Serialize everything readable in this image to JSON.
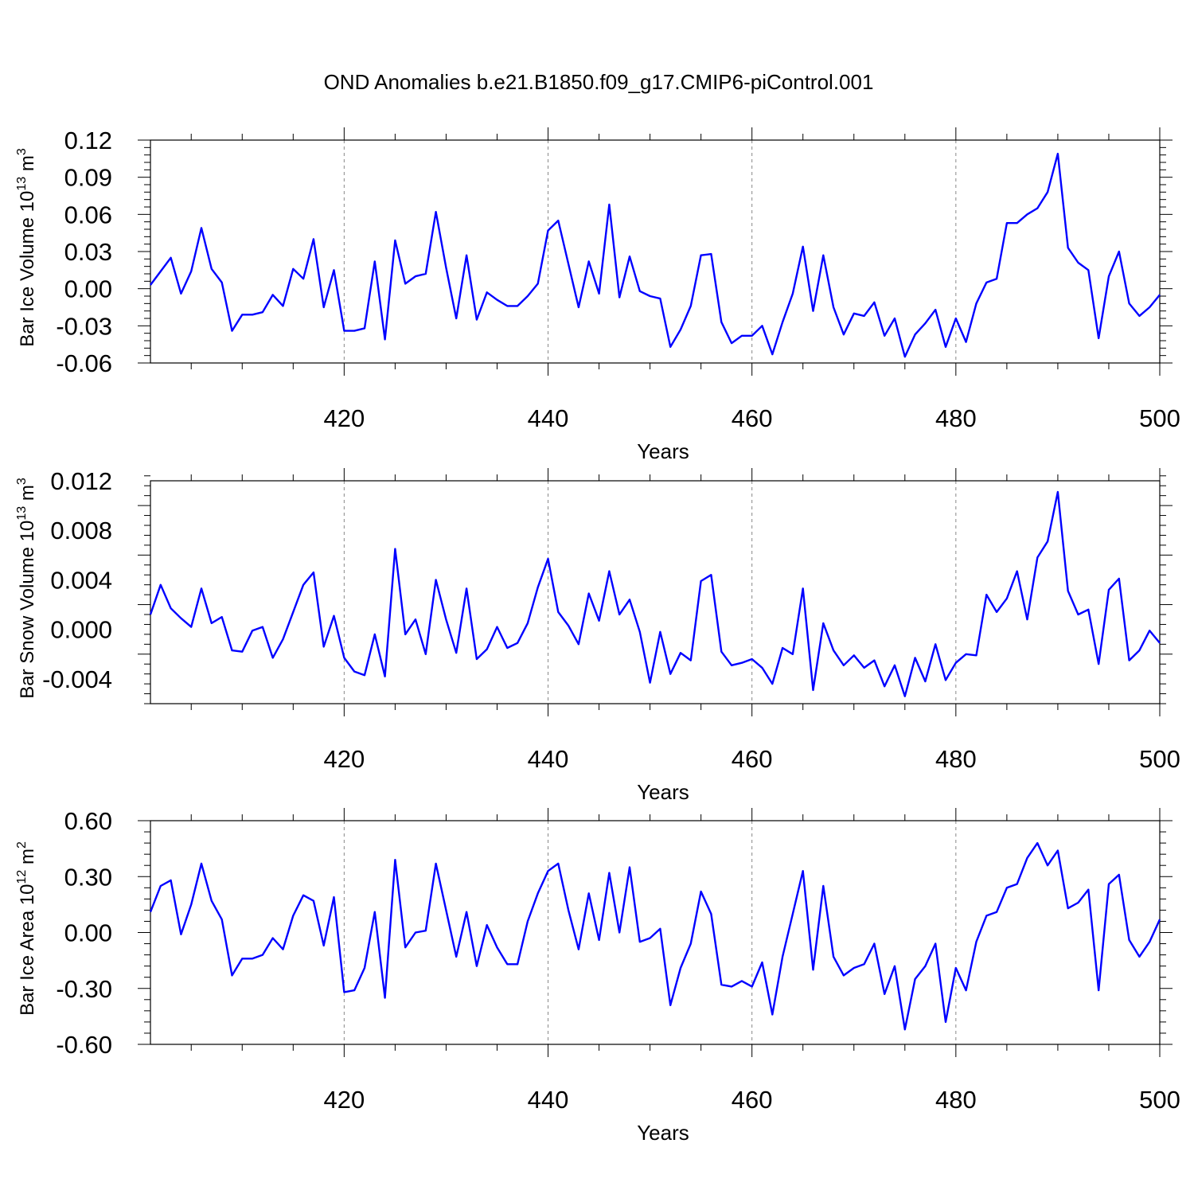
{
  "title": "OND Anomalies b.e21.B1850.f09_g17.CMIP6-piControl.001",
  "colors": {
    "line": "#0000ff",
    "axes": "#000000",
    "grid": "#888888"
  },
  "chart_data": [
    {
      "type": "line",
      "xlabel": "Years",
      "ylabel": "Bar Ice Volume 10",
      "ylabel_exp": "13",
      "ylabel_unit": " m",
      "ylabel_unit_exp": "3",
      "xlim": [
        401,
        500
      ],
      "ylim": [
        -0.06,
        0.12
      ],
      "xticks": [
        420,
        440,
        460,
        480,
        500
      ],
      "xtick_labels": [
        "420",
        "440",
        "460",
        "480",
        "500"
      ],
      "yticks": [
        -0.06,
        -0.03,
        0.0,
        0.03,
        0.06,
        0.09,
        0.12
      ],
      "ytick_labels": [
        "-0.06",
        "-0.03",
        "0.00",
        "0.03",
        "0.06",
        "0.09",
        "0.12"
      ],
      "grid": "vertical dashed at major x ticks",
      "series": [
        {
          "x_start": 401,
          "values": [
            0.003,
            0.014,
            0.025,
            -0.004,
            0.014,
            0.049,
            0.016,
            0.005,
            -0.034,
            -0.021,
            -0.021,
            -0.019,
            -0.005,
            -0.014,
            0.016,
            0.008,
            0.04,
            -0.015,
            0.015,
            -0.034,
            -0.034,
            -0.032,
            0.022,
            -0.041,
            0.039,
            0.004,
            0.01,
            0.012,
            0.062,
            0.017,
            -0.024,
            0.027,
            -0.025,
            -0.003,
            -0.009,
            -0.014,
            -0.014,
            -0.006,
            0.004,
            0.047,
            0.055,
            0.02,
            -0.015,
            0.022,
            -0.004,
            0.068,
            -0.007,
            0.026,
            -0.002,
            -0.006,
            -0.008,
            -0.047,
            -0.033,
            -0.014,
            0.027,
            0.028,
            -0.027,
            -0.044,
            -0.038,
            -0.038,
            -0.03,
            -0.053,
            -0.027,
            -0.004,
            0.034,
            -0.018,
            0.027,
            -0.015,
            -0.037,
            -0.02,
            -0.022,
            -0.011,
            -0.038,
            -0.024,
            -0.055,
            -0.037,
            -0.028,
            -0.017,
            -0.047,
            -0.024,
            -0.043,
            -0.012,
            0.005,
            0.008,
            0.053,
            0.053,
            0.06,
            0.065,
            0.078,
            0.109,
            0.033,
            0.021,
            0.015,
            -0.04,
            0.01,
            0.03,
            -0.012,
            -0.022,
            -0.015,
            -0.005
          ]
        }
      ]
    },
    {
      "type": "line",
      "xlabel": "Years",
      "ylabel": "Bar Snow Volume 10",
      "ylabel_exp": "13",
      "ylabel_unit": " m",
      "ylabel_unit_exp": "3",
      "xlim": [
        401,
        500
      ],
      "ylim": [
        -0.006,
        0.012
      ],
      "xticks": [
        420,
        440,
        460,
        480,
        500
      ],
      "xtick_labels": [
        "420",
        "440",
        "460",
        "480",
        "500"
      ],
      "yticks": [
        -0.004,
        0.0,
        0.004,
        0.008,
        0.012
      ],
      "ytick_labels": [
        "-0.004",
        "0.000",
        "0.004",
        "0.008",
        "0.012"
      ],
      "grid": "vertical dashed at major x ticks",
      "series": [
        {
          "x_start": 401,
          "values": [
            0.0012,
            0.0036,
            0.0017,
            0.0009,
            0.0002,
            0.0033,
            0.0005,
            0.001,
            -0.0017,
            -0.0018,
            -0.0001,
            0.0002,
            -0.0023,
            -0.0008,
            0.0014,
            0.0036,
            0.0046,
            -0.0014,
            0.0011,
            -0.0023,
            -0.0034,
            -0.0037,
            -0.0004,
            -0.0038,
            0.0065,
            -0.0004,
            0.0008,
            -0.002,
            0.004,
            0.0008,
            -0.0019,
            0.0033,
            -0.0024,
            -0.0016,
            0.0002,
            -0.0015,
            -0.0011,
            0.0005,
            0.0034,
            0.0057,
            0.0014,
            0.0003,
            -0.0012,
            0.0029,
            0.0007,
            0.0047,
            0.0012,
            0.0024,
            -0.0002,
            -0.0043,
            -0.0002,
            -0.0036,
            -0.0019,
            -0.0025,
            0.0039,
            0.0044,
            -0.0018,
            -0.0029,
            -0.0027,
            -0.0024,
            -0.0031,
            -0.0044,
            -0.0015,
            -0.002,
            0.0033,
            -0.0049,
            0.0005,
            -0.0017,
            -0.0029,
            -0.0021,
            -0.0031,
            -0.0025,
            -0.0046,
            -0.0029,
            -0.0054,
            -0.0023,
            -0.0042,
            -0.0012,
            -0.0041,
            -0.0027,
            -0.002,
            -0.0021,
            0.0028,
            0.0014,
            0.0025,
            0.0047,
            0.0008,
            0.0058,
            0.0071,
            0.0111,
            0.0031,
            0.0012,
            0.0016,
            -0.0028,
            0.0032,
            0.0041,
            -0.0025,
            -0.0017,
            -0.0001,
            -0.0011
          ]
        }
      ]
    },
    {
      "type": "line",
      "xlabel": "Years",
      "ylabel": "Bar Ice Area 10",
      "ylabel_exp": "12",
      "ylabel_unit": " m",
      "ylabel_unit_exp": "2",
      "xlim": [
        401,
        500
      ],
      "ylim": [
        -0.6,
        0.6
      ],
      "xticks": [
        420,
        440,
        460,
        480,
        500
      ],
      "xtick_labels": [
        "420",
        "440",
        "460",
        "480",
        "500"
      ],
      "yticks": [
        -0.6,
        -0.3,
        0.0,
        0.3,
        0.6
      ],
      "ytick_labels": [
        "-0.60",
        "-0.30",
        "0.00",
        "0.30",
        "0.60"
      ],
      "grid": "vertical dashed at major x ticks",
      "series": [
        {
          "x_start": 401,
          "values": [
            0.11,
            0.25,
            0.28,
            -0.01,
            0.15,
            0.37,
            0.17,
            0.07,
            -0.23,
            -0.14,
            -0.14,
            -0.12,
            -0.03,
            -0.09,
            0.09,
            0.2,
            0.17,
            -0.07,
            0.19,
            -0.32,
            -0.31,
            -0.19,
            0.11,
            -0.35,
            0.39,
            -0.08,
            0.0,
            0.01,
            0.37,
            0.12,
            -0.13,
            0.11,
            -0.18,
            0.04,
            -0.08,
            -0.17,
            -0.17,
            0.06,
            0.21,
            0.33,
            0.37,
            0.12,
            -0.09,
            0.21,
            -0.04,
            0.32,
            0.0,
            0.35,
            -0.05,
            -0.03,
            0.02,
            -0.39,
            -0.19,
            -0.06,
            0.22,
            0.1,
            -0.28,
            -0.29,
            -0.26,
            -0.29,
            -0.16,
            -0.44,
            -0.13,
            0.1,
            0.33,
            -0.2,
            0.25,
            -0.13,
            -0.23,
            -0.19,
            -0.17,
            -0.06,
            -0.33,
            -0.18,
            -0.52,
            -0.25,
            -0.18,
            -0.06,
            -0.48,
            -0.19,
            -0.31,
            -0.05,
            0.09,
            0.11,
            0.24,
            0.26,
            0.4,
            0.48,
            0.36,
            0.44,
            0.13,
            0.16,
            0.23,
            -0.31,
            0.26,
            0.31,
            -0.04,
            -0.13,
            -0.05,
            0.07
          ]
        }
      ]
    }
  ]
}
